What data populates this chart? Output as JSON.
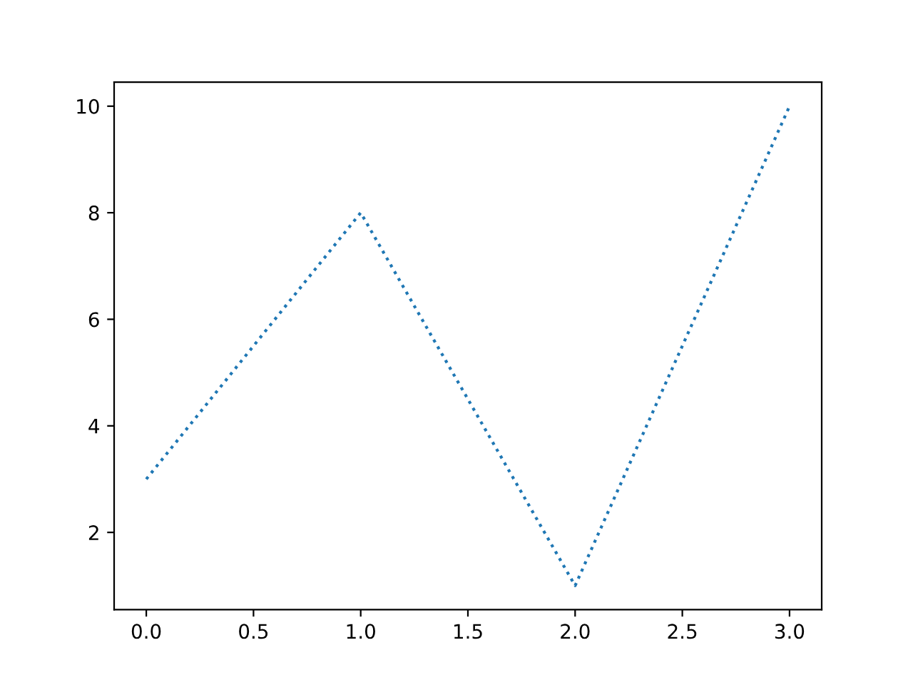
{
  "chart_data": {
    "type": "line",
    "x": [
      0,
      1,
      2,
      3
    ],
    "series": [
      {
        "color": "#1f77b4",
        "values": [
          3,
          8,
          1,
          10
        ]
      }
    ],
    "line_style": "dotted",
    "xlim": [
      -0.15,
      3.15
    ],
    "ylim": [
      0.55,
      10.45
    ],
    "xticks": [
      {
        "value": 0,
        "label": "0.0"
      },
      {
        "value": 0.5,
        "label": "0.5"
      },
      {
        "value": 1,
        "label": "1.0"
      },
      {
        "value": 1.5,
        "label": "1.5"
      },
      {
        "value": 2,
        "label": "2.0"
      },
      {
        "value": 2.5,
        "label": "2.5"
      },
      {
        "value": 3,
        "label": "3.0"
      }
    ],
    "yticks": [
      2,
      4,
      6,
      8,
      10
    ],
    "grid": false
  }
}
